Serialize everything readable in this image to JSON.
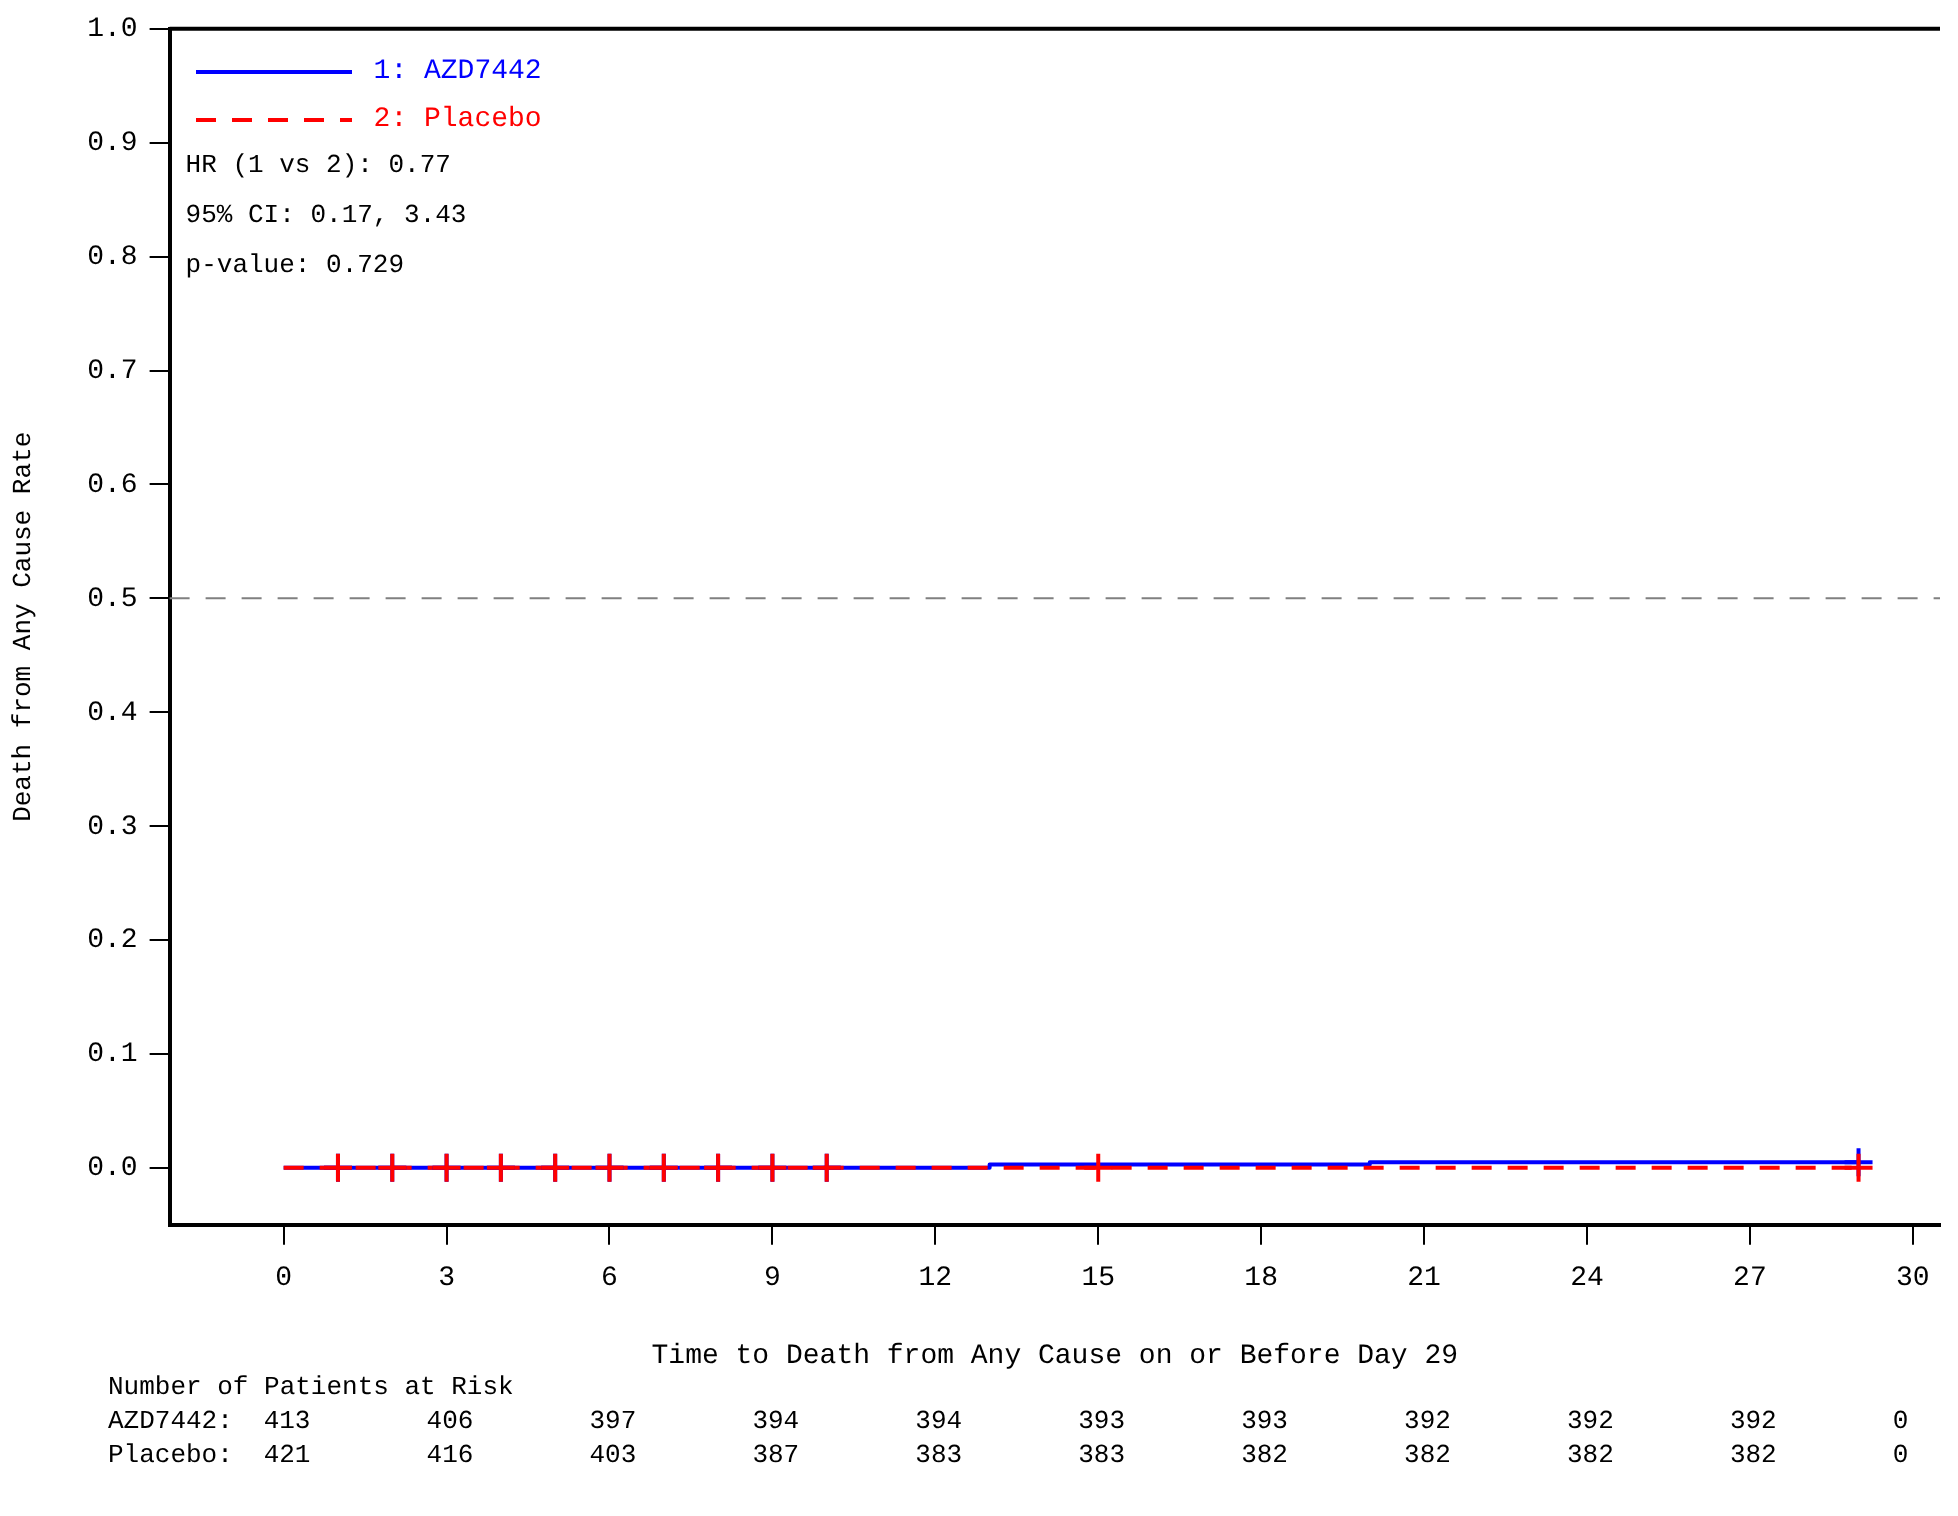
{
  "chart_data": {
    "type": "step",
    "xlabel": "Time to Death from Any Cause on or Before Day 29",
    "ylabel": "Death from Any Cause Rate",
    "xlim": [
      -2.1,
      30.5
    ],
    "xticks": [
      0,
      3,
      6,
      9,
      12,
      15,
      18,
      21,
      24,
      27,
      30
    ],
    "ylim": [
      -0.05,
      1.0
    ],
    "yticks": [
      {
        "value": 0,
        "label": "0.0"
      },
      {
        "value": 0.1,
        "label": "0.1"
      },
      {
        "value": 0.2,
        "label": "0.2"
      },
      {
        "value": 0.3,
        "label": "0.3"
      },
      {
        "value": 0.4,
        "label": "0.4"
      },
      {
        "value": 0.5,
        "label": "0.5"
      },
      {
        "value": 0.6,
        "label": "0.6"
      },
      {
        "value": 0.7,
        "label": "0.7"
      },
      {
        "value": 0.8,
        "label": "0.8"
      },
      {
        "value": 0.9,
        "label": "0.9"
      },
      {
        "value": 1,
        "label": "1.0"
      }
    ],
    "grid": false,
    "legend": "top left",
    "marker": "none",
    "series": [
      {
        "name": "1: AZD7442",
        "color": "#0000ff",
        "line_style": "solid",
        "x": [
          0,
          13,
          20,
          29
        ],
        "values": [
          0,
          0.003,
          0.005,
          0.005
        ]
      },
      {
        "name": "2: Placebo",
        "color": "#ff0000",
        "line_style": "dashed",
        "x": [
          0,
          29
        ],
        "values": [
          0,
          0
        ]
      },
      {
        "type": "scatter",
        "marker": "cross",
        "color": "#0000ff",
        "x": [
          1,
          2,
          3,
          4,
          5,
          6,
          7,
          8,
          9,
          10,
          29
        ],
        "values": [
          0,
          0,
          0,
          0,
          0,
          0,
          0,
          0,
          0,
          0,
          0.005
        ]
      },
      {
        "type": "scatter",
        "marker": "cross",
        "color": "#ff0000",
        "x": [
          1,
          2,
          3,
          4,
          5,
          6,
          7,
          8,
          9,
          10,
          15,
          29
        ],
        "values": [
          0,
          0,
          0,
          0,
          0,
          0,
          0,
          0,
          0,
          0,
          0,
          0
        ]
      }
    ],
    "ref_lines": [
      {
        "axis": "y",
        "value": 0.5,
        "color": "#808080",
        "line_style": "dashed"
      }
    ],
    "annotations": [
      "HR (1 vs 2): 0.77",
      "95% CI: 0.17, 3.43",
      "p-value: 0.729",
      "Number of Patients at Risk",
      "AZD7442: 413 406 397 394 394 393 393 392 392 392 0",
      "Placebo: 421 416 403 387 383 383 382 382 382 382 0"
    ]
  }
}
